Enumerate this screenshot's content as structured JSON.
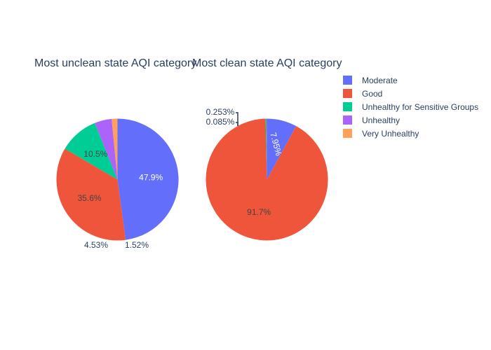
{
  "chart_data": [
    {
      "type": "pie",
      "title": "Most unclean state AQI category",
      "slices": [
        {
          "category": "Moderate",
          "value": 47.9,
          "label": "47.9%"
        },
        {
          "category": "Good",
          "value": 35.6,
          "label": "35.6%"
        },
        {
          "category": "Unhealthy for Sensitive Groups",
          "value": 10.5,
          "label": "10.5%"
        },
        {
          "category": "Unhealthy",
          "value": 4.53,
          "label": "4.53%"
        },
        {
          "category": "Very Unhealthy",
          "value": 1.52,
          "label": "1.52%"
        }
      ]
    },
    {
      "type": "pie",
      "title": "Most clean state AQI category",
      "slices": [
        {
          "category": "Moderate",
          "value": 7.95,
          "label": "7.95%"
        },
        {
          "category": "Good",
          "value": 91.7,
          "label": "91.7%"
        },
        {
          "category": "Unhealthy for Sensitive Groups",
          "value": 0.253,
          "label": "0.253%"
        },
        {
          "category": "Unhealthy",
          "value": 0.085,
          "label": "0.085%"
        }
      ]
    }
  ],
  "legend": {
    "placement": "top-right",
    "items": [
      {
        "label": "Moderate",
        "color": "#636efa"
      },
      {
        "label": "Good",
        "color": "#ef553b"
      },
      {
        "label": "Unhealthy for Sensitive Groups",
        "color": "#00cc96"
      },
      {
        "label": "Unhealthy",
        "color": "#ab63fa"
      },
      {
        "label": "Very Unhealthy",
        "color": "#ffa15a"
      }
    ]
  }
}
